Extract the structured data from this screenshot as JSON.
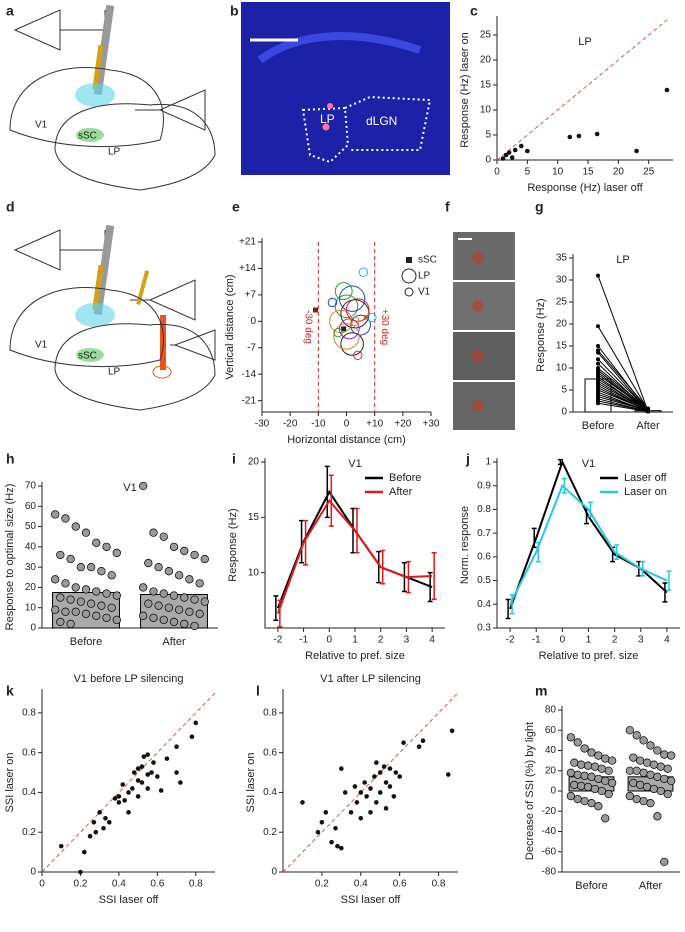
{
  "diagrams": [
    {
      "panel": "a",
      "labels": [
        "V1",
        "sSC",
        "LP"
      ]
    },
    {
      "panel": "d",
      "labels": [
        "V1",
        "sSC",
        "LP"
      ]
    }
  ],
  "images": [
    {
      "panel": "b",
      "labels": [
        "LP",
        "dLGN"
      ]
    },
    {
      "panel": "f"
    }
  ],
  "chart_data": [
    {
      "type": "scatter",
      "panel": "c",
      "title": "LP",
      "xlabel": "Response (Hz) laser off",
      "ylabel": "Response (Hz) laser on",
      "x": [
        1,
        1.5,
        2,
        2.5,
        3,
        4,
        5,
        12,
        13.5,
        16.5,
        23,
        28
      ],
      "y": [
        0.3,
        1,
        1.5,
        0.5,
        2,
        2.8,
        1.8,
        4.6,
        4.8,
        5.2,
        1.8,
        14
      ],
      "color": "#111111",
      "diagonal": true,
      "xlim": [
        0,
        29
      ],
      "ylim": [
        0,
        28
      ],
      "xticks": [
        0,
        5,
        10,
        15,
        20,
        25
      ],
      "yticks": [
        0,
        5,
        10,
        15,
        20,
        25
      ]
    },
    {
      "type": "bubble",
      "panel": "e",
      "xlabel": "Horizontal distance (cm)",
      "ylabel": "Vertical distance (cm)",
      "xlim": [
        -30,
        30
      ],
      "ylim": [
        -24,
        21
      ],
      "xticks": [
        -30,
        -20,
        -10,
        0,
        {
          "value": 10,
          "label": "+10"
        },
        {
          "value": 20,
          "label": "+20"
        },
        {
          "value": 30,
          "label": "+30"
        }
      ],
      "yticks": [
        -21,
        -14,
        -7,
        0,
        {
          "value": 7,
          "label": "+7"
        },
        {
          "value": 14,
          "label": "+14"
        },
        {
          "value": 21,
          "label": "+21"
        }
      ],
      "vlines": [
        -10,
        10
      ],
      "vline_labels": [
        "-30 deg",
        "+30 deg"
      ],
      "vline_color": "#d62728",
      "legend": "upper right",
      "series": [
        {
          "name": "sSC",
          "marker": "square",
          "x": [
            -11,
            -1,
            7
          ],
          "y": [
            3,
            -2,
            1
          ],
          "colors": [
            "#8b1a1a",
            "#222222",
            "#e0a020"
          ]
        },
        {
          "name": "LP",
          "marker": "circle",
          "x": [
            0,
            2,
            3,
            -2,
            1,
            4,
            -1,
            2,
            5,
            0
          ],
          "y": [
            4,
            6,
            2,
            0,
            -2,
            3,
            8,
            -6,
            -1,
            -4
          ],
          "sizes": [
            4,
            4.5,
            5,
            4,
            3.5,
            4,
            3,
            4,
            3.5,
            4.5
          ],
          "colors": [
            "#2ca02c",
            "#1f3fd8",
            "#222222",
            "#e08020",
            "#8a2be2",
            "#d62728",
            "#2ca02c",
            "#222222",
            "#1f3fd8",
            "#e08020"
          ]
        },
        {
          "name": "V1",
          "marker": "circle",
          "x": [
            6,
            -3,
            4,
            -5,
            9,
            3
          ],
          "y": [
            13,
            -3,
            -9,
            5,
            1,
            0
          ],
          "sizes": [
            1.5,
            1.5,
            1.5,
            1.5,
            1.5,
            1.5
          ],
          "colors": [
            "#17becf",
            "#2ca02c",
            "#d62728",
            "#1f3fd8",
            "#17becf",
            "#e08020"
          ]
        }
      ]
    },
    {
      "type": "slope",
      "panel": "g",
      "title": "LP",
      "ylabel": "Response (Hz)",
      "categories": [
        "Before",
        "After"
      ],
      "pairs": [
        [
          31,
          0.2
        ],
        [
          19.5,
          0.5
        ],
        [
          15,
          0.3
        ],
        [
          14,
          0.8
        ],
        [
          13.5,
          0.2
        ],
        [
          12,
          0.4
        ],
        [
          11,
          0.1
        ],
        [
          10,
          0.6
        ],
        [
          9.5,
          0.3
        ],
        [
          9,
          0.2
        ],
        [
          8.5,
          0.5
        ],
        [
          8,
          0.1
        ],
        [
          7.5,
          0.4
        ],
        [
          7,
          0.2
        ],
        [
          6.5,
          0.3
        ],
        [
          6,
          0.1
        ],
        [
          5.5,
          0.2
        ],
        [
          5,
          0.4
        ],
        [
          4.5,
          0.1
        ],
        [
          4,
          0.2
        ],
        [
          3.5,
          0.3
        ],
        [
          3,
          0.1
        ],
        [
          2.5,
          0.2
        ],
        [
          2,
          0.1
        ]
      ],
      "bar_values": [
        7.5,
        0.3
      ],
      "bar_errors": [
        1.3,
        0.1
      ],
      "ylim": [
        0,
        35
      ],
      "yticks": [
        0,
        5,
        10,
        15,
        20,
        25,
        30,
        35
      ]
    },
    {
      "type": "bar",
      "panel": "h",
      "title": "V1",
      "ylabel": "Response to optimal size (Hz)",
      "categories": [
        "Before",
        "After"
      ],
      "values": [
        17.5,
        16.5
      ],
      "color": "#aaaaaa",
      "point_color": "#999999",
      "points": [
        [
          56,
          54,
          50,
          47,
          42,
          40,
          37,
          36,
          34,
          30,
          30,
          28,
          26,
          24,
          22,
          20,
          19,
          18,
          17,
          16,
          15,
          14,
          13,
          12,
          11,
          10,
          9,
          8,
          8,
          7,
          6,
          5,
          4,
          3,
          2
        ],
        [
          70,
          47,
          45,
          40,
          38,
          36,
          34,
          32,
          30,
          28,
          26,
          24,
          22,
          20,
          18,
          17,
          16,
          15,
          14,
          13,
          12,
          11,
          10,
          9,
          8,
          7,
          6,
          5,
          4,
          3,
          2,
          1
        ]
      ],
      "ylim": [
        0,
        70
      ],
      "yticks": [
        0,
        10,
        20,
        30,
        40,
        50,
        60,
        70
      ]
    },
    {
      "type": "line",
      "panel": "i",
      "title": "V1",
      "xlabel": "Relative to pref. size",
      "ylabel": "Response (Hz)",
      "x": [
        -2,
        -1,
        0,
        1,
        2,
        3,
        4
      ],
      "legend": "upper right",
      "series": [
        {
          "name": "Before",
          "color": "#000000",
          "values": [
            6.8,
            12.8,
            17.3,
            13.8,
            10.5,
            9.6,
            8.7
          ],
          "errors": [
            1.1,
            1.9,
            2.3,
            2.0,
            1.4,
            1.3,
            1.3
          ]
        },
        {
          "name": "After",
          "color": "#e0191b",
          "values": [
            6.3,
            12.7,
            16.5,
            13.8,
            10.5,
            9.6,
            9.7
          ],
          "errors": [
            1.2,
            2.0,
            2.3,
            2.0,
            1.5,
            1.4,
            2.1
          ]
        }
      ],
      "xlim": [
        -2.5,
        4.5
      ],
      "ylim": [
        5,
        20
      ],
      "xticks": [
        -2,
        -1,
        0,
        1,
        2,
        3,
        4
      ],
      "yticks": [
        10,
        15,
        20
      ]
    },
    {
      "type": "line",
      "panel": "j",
      "title": "V1",
      "xlabel": "Relative to pref. size",
      "ylabel": "Norm. response",
      "x": [
        -2,
        -1,
        0,
        1,
        2,
        3,
        4
      ],
      "legend": "upper right",
      "series": [
        {
          "name": "Laser off",
          "color": "#000000",
          "values": [
            0.38,
            0.68,
            1.0,
            0.77,
            0.61,
            0.55,
            0.45
          ],
          "errors": [
            0.04,
            0.04,
            0.01,
            0.03,
            0.03,
            0.03,
            0.04
          ]
        },
        {
          "name": "Laser on",
          "color": "#29c5e6",
          "values": [
            0.4,
            0.62,
            0.9,
            0.8,
            0.62,
            0.55,
            0.5
          ],
          "errors": [
            0.04,
            0.04,
            0.03,
            0.03,
            0.03,
            0.03,
            0.04
          ]
        }
      ],
      "xlim": [
        -2.5,
        4.5
      ],
      "ylim": [
        0.3,
        1
      ],
      "xticks": [
        -2,
        -1,
        0,
        1,
        2,
        3,
        4
      ],
      "yticks": [
        0.3,
        0.4,
        0.5,
        0.6,
        0.7,
        0.8,
        0.9,
        1
      ]
    },
    {
      "type": "scatter",
      "panel": "k",
      "title": "V1 before LP silencing",
      "xlabel": "SSI laser off",
      "ylabel": "SSI laser on",
      "x": [
        0.1,
        0.2,
        0.22,
        0.25,
        0.27,
        0.28,
        0.3,
        0.32,
        0.33,
        0.35,
        0.38,
        0.4,
        0.4,
        0.42,
        0.43,
        0.45,
        0.45,
        0.47,
        0.48,
        0.5,
        0.5,
        0.52,
        0.52,
        0.53,
        0.55,
        0.55,
        0.57,
        0.58,
        0.6,
        0.62,
        0.65,
        0.7,
        0.7,
        0.72,
        0.78,
        0.8,
        0.55,
        0.5
      ],
      "y": [
        0.13,
        0.0,
        0.1,
        0.18,
        0.25,
        0.2,
        0.3,
        0.22,
        0.27,
        0.25,
        0.37,
        0.35,
        0.38,
        0.44,
        0.36,
        0.4,
        0.3,
        0.42,
        0.5,
        0.46,
        0.38,
        0.53,
        0.45,
        0.58,
        0.49,
        0.42,
        0.5,
        0.55,
        0.48,
        0.41,
        0.57,
        0.63,
        0.5,
        0.45,
        0.68,
        0.75,
        0.59,
        0.52
      ],
      "color": "#111111",
      "diagonal": true,
      "xlim": [
        0,
        0.9
      ],
      "ylim": [
        0,
        0.9
      ],
      "xticks": [
        0,
        0.2,
        0.4,
        0.6,
        0.8
      ],
      "yticks": [
        0,
        0.2,
        0.4,
        0.6,
        0.8
      ]
    },
    {
      "type": "scatter",
      "panel": "l",
      "title": "V1 after LP silencing",
      "xlabel": "SSI laser off",
      "ylabel": "SSI laser on",
      "x": [
        0.1,
        0.18,
        0.2,
        0.22,
        0.25,
        0.27,
        0.28,
        0.3,
        0.3,
        0.32,
        0.35,
        0.37,
        0.38,
        0.4,
        0.4,
        0.42,
        0.43,
        0.45,
        0.45,
        0.47,
        0.48,
        0.5,
        0.5,
        0.52,
        0.53,
        0.55,
        0.55,
        0.57,
        0.58,
        0.6,
        0.62,
        0.7,
        0.72,
        0.85,
        0.87,
        0.48,
        0.53
      ],
      "y": [
        0.35,
        0.2,
        0.25,
        0.3,
        0.15,
        0.22,
        0.13,
        0.12,
        0.52,
        0.4,
        0.3,
        0.43,
        0.35,
        0.4,
        0.27,
        0.45,
        0.38,
        0.42,
        0.3,
        0.48,
        0.35,
        0.5,
        0.4,
        0.53,
        0.45,
        0.43,
        0.52,
        0.38,
        0.5,
        0.48,
        0.65,
        0.63,
        0.66,
        0.49,
        0.71,
        0.55,
        0.32
      ],
      "color": "#111111",
      "diagonal": true,
      "xlim": [
        0,
        0.9
      ],
      "ylim": [
        0,
        0.9
      ],
      "xticks": [
        0.2,
        0.4,
        0.6,
        0.8
      ],
      "yticks": [
        0,
        0.2,
        0.4,
        0.6,
        0.8
      ]
    },
    {
      "type": "bar",
      "panel": "m",
      "ylabel": "Decrease of SSI (%) by light",
      "categories": [
        "Before",
        "After"
      ],
      "values": [
        14,
        14
      ],
      "color": "#aaaaaa",
      "point_color": "#999999",
      "points": [
        [
          53,
          48,
          42,
          38,
          35,
          32,
          30,
          28,
          26,
          25,
          24,
          22,
          20,
          18,
          16,
          15,
          14,
          12,
          10,
          8,
          6,
          5,
          4,
          2,
          0,
          -3,
          -5,
          -8,
          -10,
          -12,
          -15,
          -27
        ],
        [
          60,
          55,
          50,
          45,
          40,
          36,
          35,
          33,
          30,
          28,
          26,
          24,
          22,
          20,
          20,
          18,
          16,
          14,
          12,
          10,
          8,
          6,
          4,
          2,
          0,
          -3,
          -5,
          -8,
          -10,
          -12,
          -25,
          -70
        ]
      ],
      "ylim": [
        -80,
        80
      ],
      "yticks": [
        -80,
        -60,
        -40,
        -20,
        0,
        20,
        40,
        60,
        80
      ]
    }
  ]
}
